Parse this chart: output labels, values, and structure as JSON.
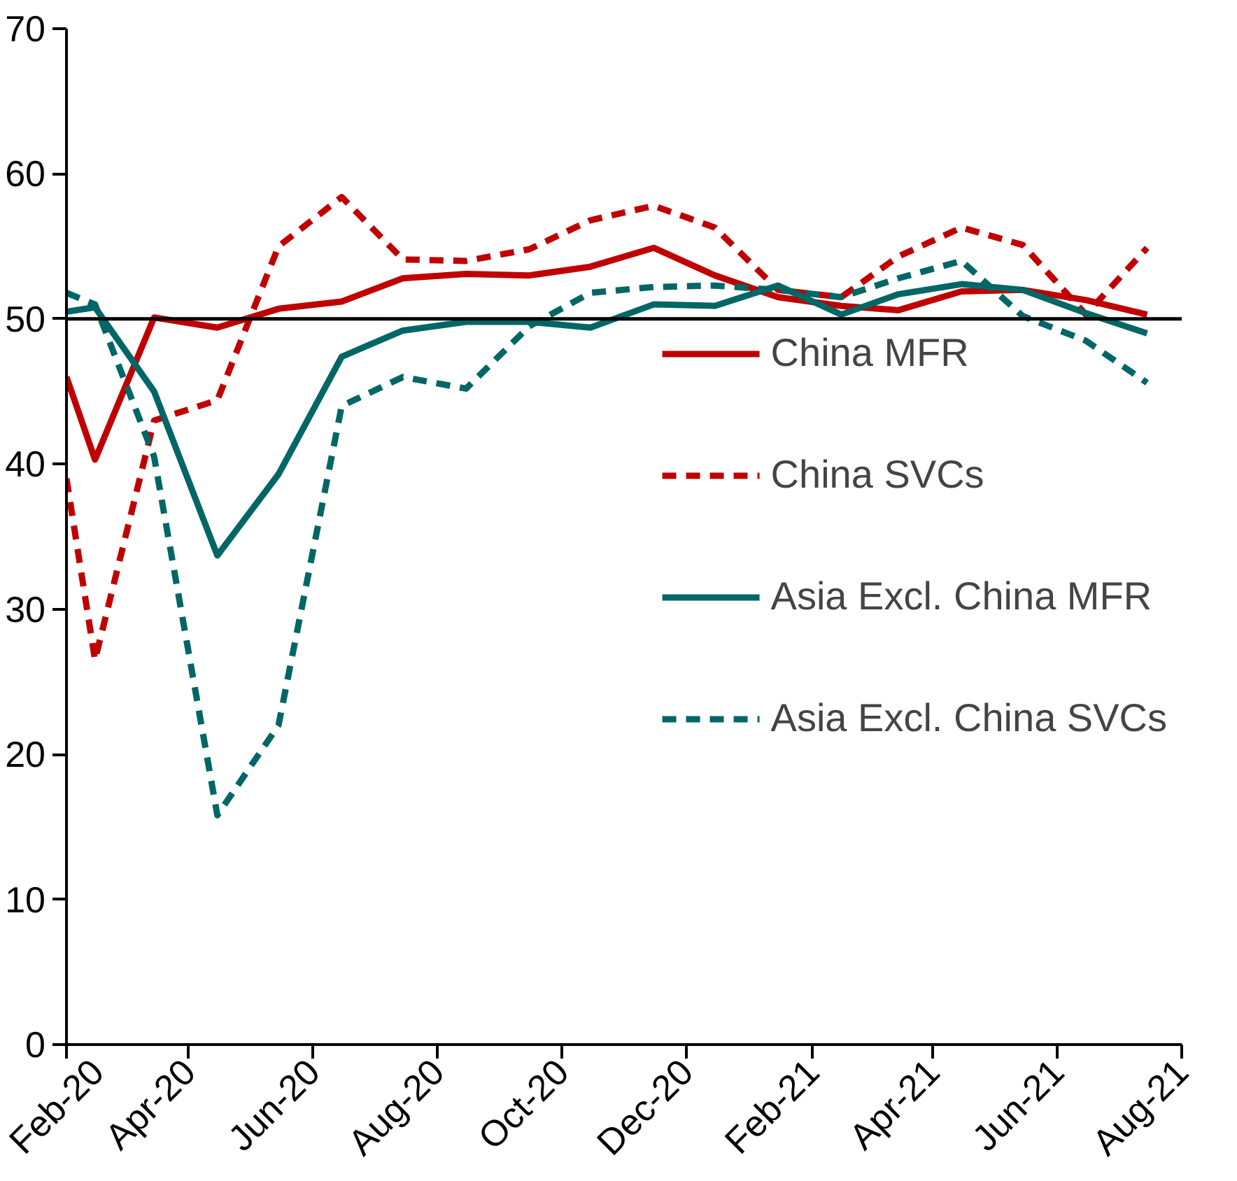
{
  "chart_data": {
    "type": "line",
    "x": [
      "2020-02-01",
      "2020-02-15",
      "2020-03-15",
      "2020-04-15",
      "2020-05-15",
      "2020-06-15",
      "2020-07-15",
      "2020-08-15",
      "2020-09-15",
      "2020-10-15",
      "2020-11-15",
      "2020-12-15",
      "2021-01-15",
      "2021-02-15",
      "2021-03-15",
      "2021-04-15",
      "2021-05-15",
      "2021-06-15",
      "2021-07-15"
    ],
    "series": [
      {
        "name": "China MFR",
        "color": "#c00000",
        "line_style": "solid",
        "values": [
          46.0,
          40.3,
          50.1,
          49.4,
          50.7,
          51.2,
          52.8,
          53.1,
          53.0,
          53.6,
          54.9,
          53.0,
          51.5,
          50.9,
          50.6,
          51.9,
          52.0,
          51.3,
          50.3
        ]
      },
      {
        "name": "China SVCs",
        "color": "#c00000",
        "line_style": "dashed",
        "values": [
          39.0,
          26.5,
          43.0,
          44.4,
          55.0,
          58.4,
          54.1,
          54.0,
          54.8,
          56.8,
          57.8,
          56.3,
          52.0,
          51.5,
          54.3,
          56.3,
          55.1,
          50.3,
          54.9
        ]
      },
      {
        "name": "Asia Excl. China MFR",
        "color": "#006666",
        "line_style": "solid",
        "values": [
          50.5,
          50.8,
          45.0,
          33.7,
          39.3,
          47.4,
          49.2,
          49.8,
          49.8,
          49.4,
          51.0,
          50.9,
          52.3,
          50.3,
          51.7,
          52.4,
          52.0,
          50.4,
          49.0
        ]
      },
      {
        "name": "Asia Excl. China SVCs",
        "color": "#006666",
        "line_style": "dashed",
        "values": [
          51.8,
          51.0,
          40.5,
          15.8,
          22.0,
          44.0,
          46.0,
          45.2,
          49.5,
          51.8,
          52.2,
          52.3,
          52.0,
          51.5,
          52.8,
          54.0,
          50.2,
          48.5,
          45.6
        ]
      }
    ],
    "xlim": [
      "2020-02-01",
      "2021-08-01"
    ],
    "xticks": [
      {
        "value": "2020-02-01",
        "label": "Feb-20"
      },
      {
        "value": "2020-04-01",
        "label": "Apr-20"
      },
      {
        "value": "2020-06-01",
        "label": "Jun-20"
      },
      {
        "value": "2020-08-01",
        "label": "Aug-20"
      },
      {
        "value": "2020-10-01",
        "label": "Oct-20"
      },
      {
        "value": "2020-12-01",
        "label": "Dec-20"
      },
      {
        "value": "2021-02-01",
        "label": "Feb-21"
      },
      {
        "value": "2021-04-01",
        "label": "Apr-21"
      },
      {
        "value": "2021-06-01",
        "label": "Jun-21"
      },
      {
        "value": "2021-08-01",
        "label": "Aug-21"
      }
    ],
    "ylim": [
      0,
      70
    ],
    "yticks": [
      0,
      10,
      20,
      30,
      40,
      50,
      60,
      70
    ],
    "ref_lines": [
      {
        "axis": "y",
        "value": 50,
        "color": "#000000"
      }
    ],
    "legend": "right",
    "grid": false
  }
}
